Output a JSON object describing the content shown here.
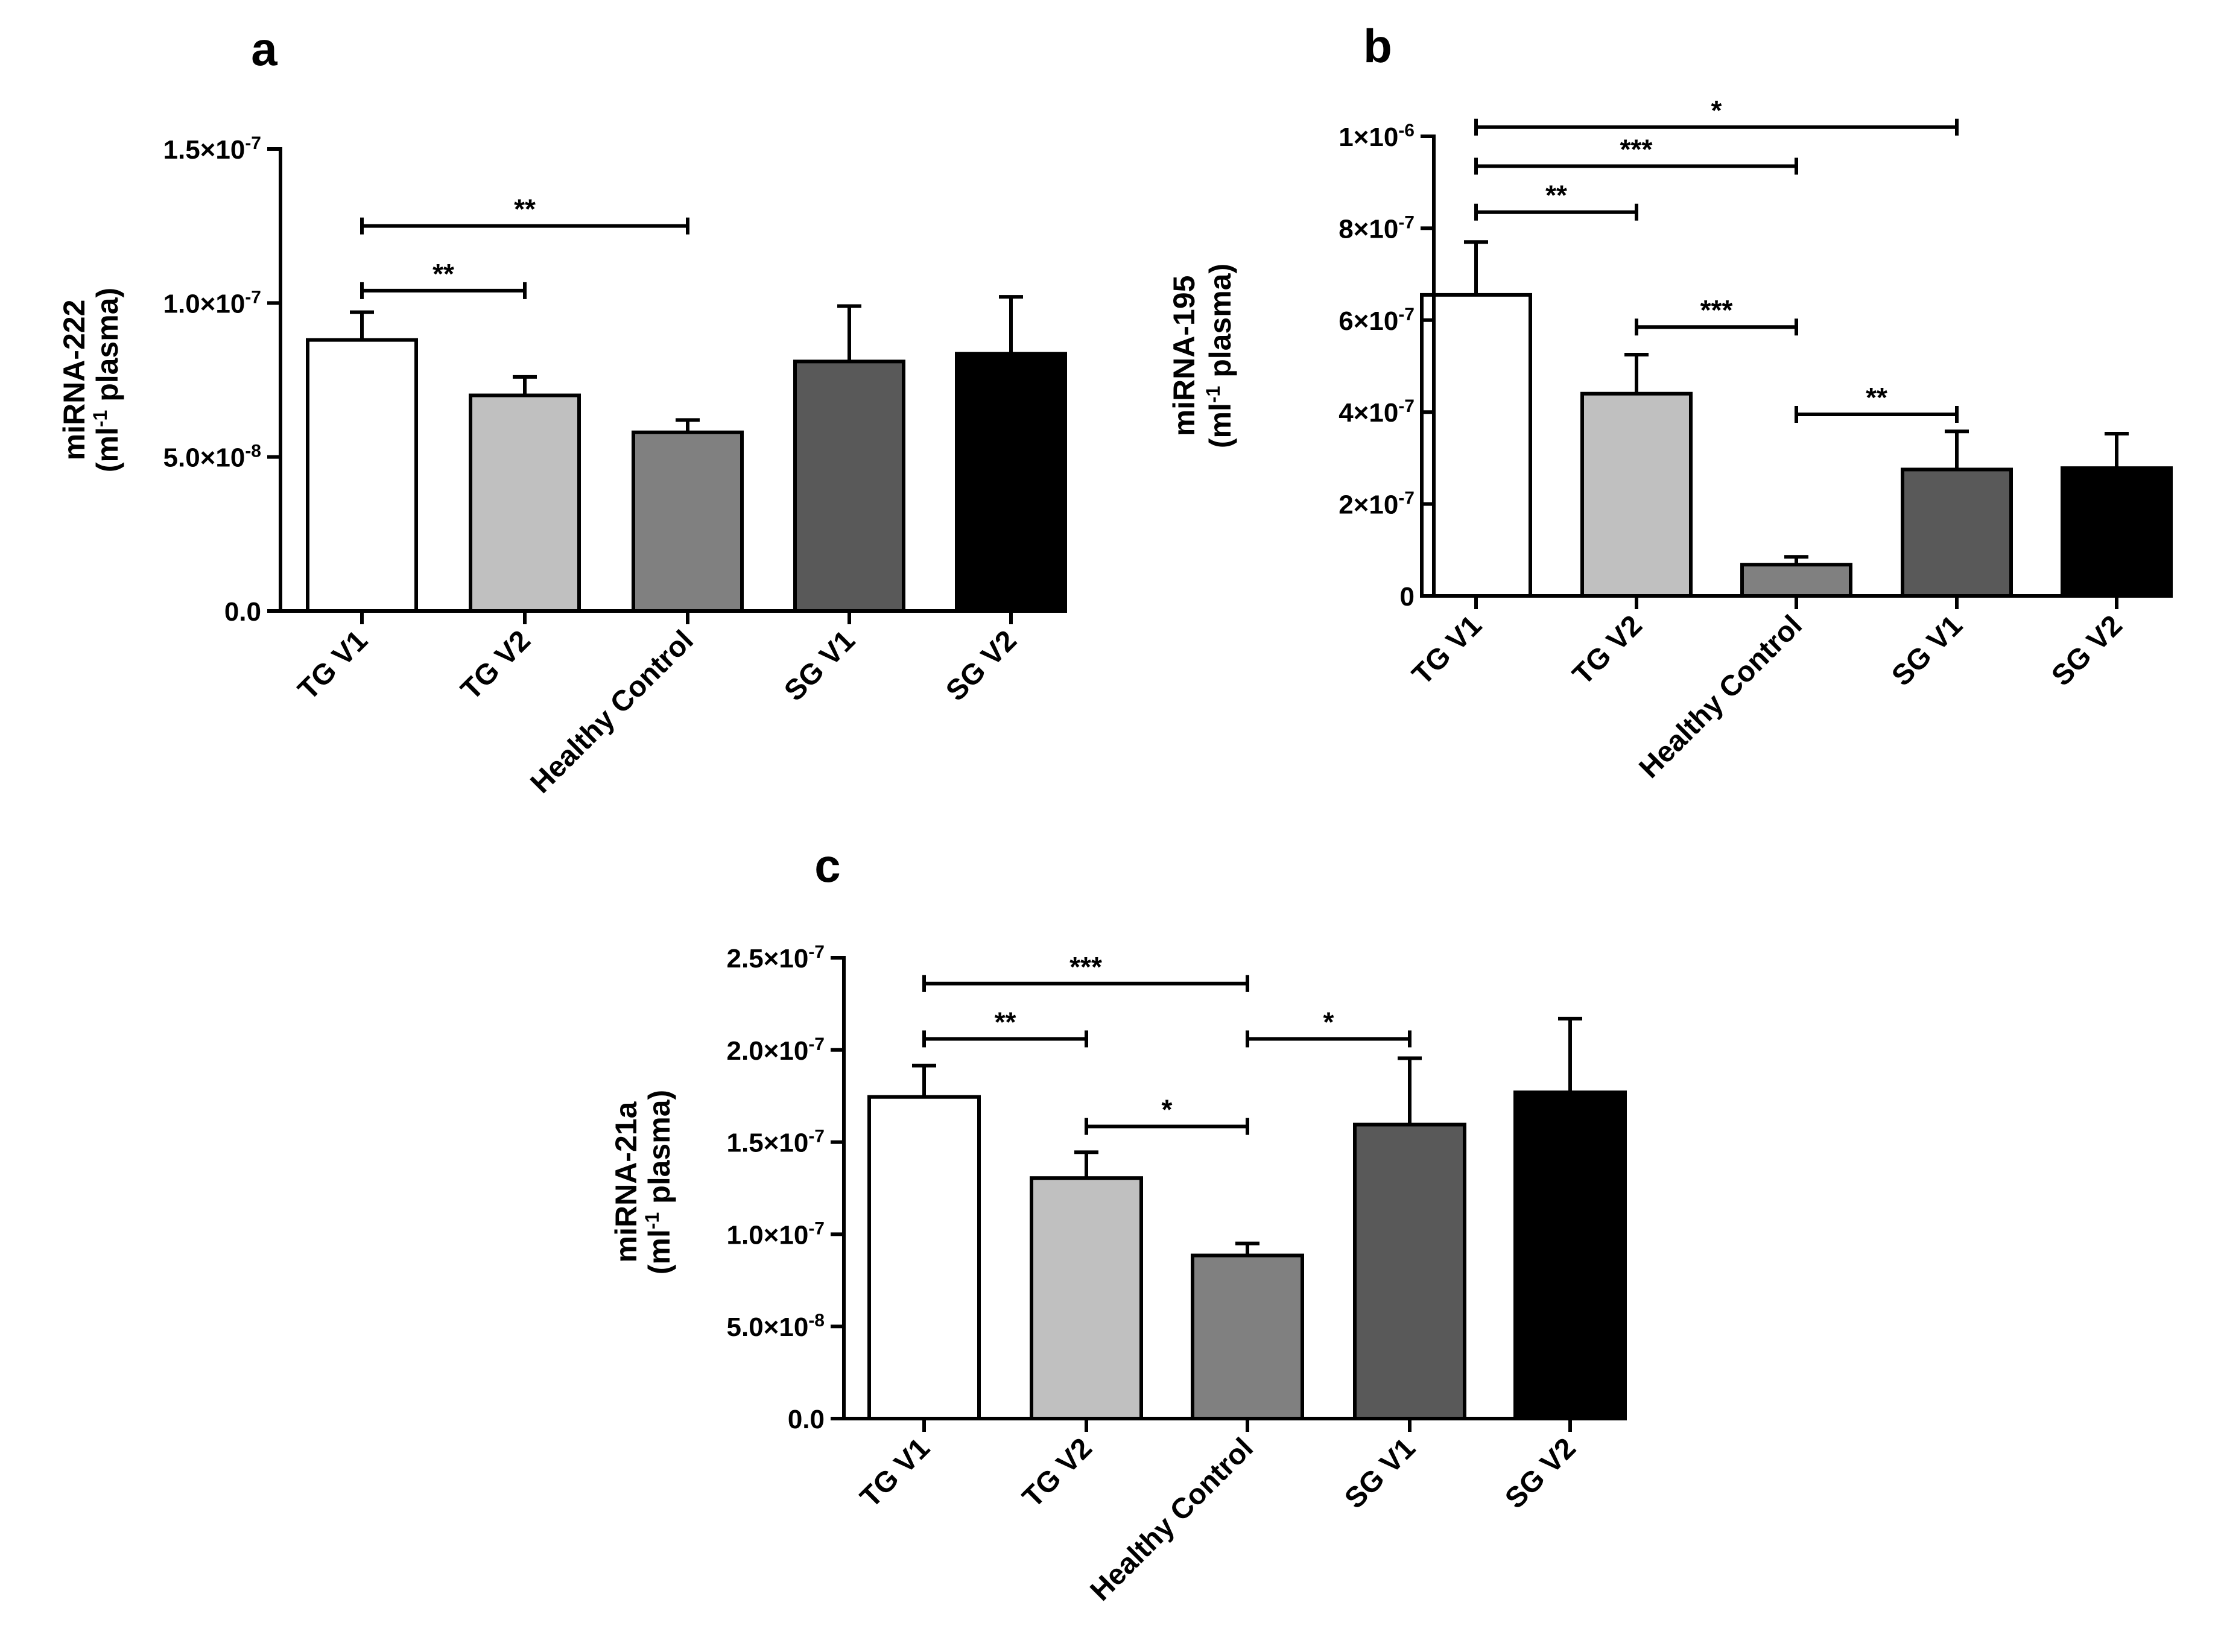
{
  "chart_data": [
    {
      "type": "bar",
      "panel": "a",
      "ylabel_main": "miRNA-222",
      "ylabel_unit_pre": "(ml",
      "ylabel_unit_sup": "-1",
      "ylabel_unit_post": " plasma)",
      "categories": [
        "TG V1",
        "TG V2",
        "Healthy Control",
        "SG V1",
        "SG V2"
      ],
      "values": [
        8.8e-08,
        7e-08,
        5.8e-08,
        8.1e-08,
        8.35e-08
      ],
      "errors": [
        9e-09,
        6e-09,
        4e-09,
        1.8e-08,
        1.85e-08
      ],
      "colors": [
        "#ffffff",
        "#c0c0c0",
        "#808080",
        "#595959",
        "#000000"
      ],
      "ylim": [
        0,
        1.5e-07
      ],
      "yticks": [
        {
          "v": 0,
          "b": "0.0",
          "e": ""
        },
        {
          "v": 5e-08,
          "b": "5.0×10",
          "e": "-8"
        },
        {
          "v": 1e-07,
          "b": "1.0×10",
          "e": "-7"
        },
        {
          "v": 1.5e-07,
          "b": "1.5×10",
          "e": "-7"
        }
      ],
      "significance": [
        {
          "from": 0,
          "to": 1,
          "y": 1.04e-07,
          "label": "**"
        },
        {
          "from": 0,
          "to": 2,
          "y": 1.25e-07,
          "label": "**"
        }
      ]
    },
    {
      "type": "bar",
      "panel": "b",
      "ylabel_main": "miRNA-195",
      "ylabel_unit_pre": "(ml",
      "ylabel_unit_sup": "-1",
      "ylabel_unit_post": " plasma)",
      "categories": [
        "TG V1",
        "TG V2",
        "Healthy Control",
        "SG V1",
        "SG V2"
      ],
      "values": [
        6.55e-07,
        4.4e-07,
        6.8e-08,
        2.75e-07,
        2.78e-07
      ],
      "errors": [
        1.15e-07,
        8.5e-08,
        1.7e-08,
        8.3e-08,
        7.5e-08
      ],
      "colors": [
        "#ffffff",
        "#c0c0c0",
        "#808080",
        "#595959",
        "#000000"
      ],
      "ylim": [
        0,
        1e-06
      ],
      "yticks": [
        {
          "v": 0,
          "b": "0",
          "e": ""
        },
        {
          "v": 2e-07,
          "b": "2×10",
          "e": "-7"
        },
        {
          "v": 4e-07,
          "b": "4×10",
          "e": "-7"
        },
        {
          "v": 6e-07,
          "b": "6×10",
          "e": "-7"
        },
        {
          "v": 8e-07,
          "b": "8×10",
          "e": "-7"
        },
        {
          "v": 1e-06,
          "b": "1×10",
          "e": "-6"
        }
      ],
      "significance": [
        {
          "from": 0,
          "to": 1,
          "y": 8.35e-07,
          "label": "**"
        },
        {
          "from": 0,
          "to": 2,
          "y": 9.35e-07,
          "label": "***"
        },
        {
          "from": 0,
          "to": 3,
          "y": 1.02e-06,
          "label": "*"
        },
        {
          "from": 1,
          "to": 2,
          "y": 5.85e-07,
          "label": "***"
        },
        {
          "from": 2,
          "to": 3,
          "y": 3.95e-07,
          "label": "**"
        }
      ]
    },
    {
      "type": "bar",
      "panel": "c",
      "ylabel_main": "miRNA-21a",
      "ylabel_unit_pre": "(ml",
      "ylabel_unit_sup": "-1",
      "ylabel_unit_post": " plasma)",
      "categories": [
        "TG V1",
        "TG V2",
        "Healthy Control",
        "SG V1",
        "SG V2"
      ],
      "values": [
        1.745e-07,
        1.305e-07,
        8.85e-08,
        1.595e-07,
        1.77e-07
      ],
      "errors": [
        1.7e-08,
        1.4e-08,
        6.5e-09,
        3.6e-08,
        4e-08
      ],
      "colors": [
        "#ffffff",
        "#c0c0c0",
        "#808080",
        "#595959",
        "#000000"
      ],
      "ylim": [
        0,
        2.5e-07
      ],
      "yticks": [
        {
          "v": 0,
          "b": "0.0",
          "e": ""
        },
        {
          "v": 5e-08,
          "b": "5.0×10",
          "e": "-8"
        },
        {
          "v": 1e-07,
          "b": "1.0×10",
          "e": "-7"
        },
        {
          "v": 1.5e-07,
          "b": "1.5×10",
          "e": "-7"
        },
        {
          "v": 2e-07,
          "b": "2.0×10",
          "e": "-7"
        },
        {
          "v": 2.5e-07,
          "b": "2.5×10",
          "e": "-7"
        }
      ],
      "significance": [
        {
          "from": 0,
          "to": 1,
          "y": 2.06e-07,
          "label": "**"
        },
        {
          "from": 0,
          "to": 2,
          "y": 2.36e-07,
          "label": "***"
        },
        {
          "from": 1,
          "to": 2,
          "y": 1.585e-07,
          "label": "*"
        },
        {
          "from": 2,
          "to": 3,
          "y": 2.06e-07,
          "label": "*"
        }
      ]
    }
  ]
}
